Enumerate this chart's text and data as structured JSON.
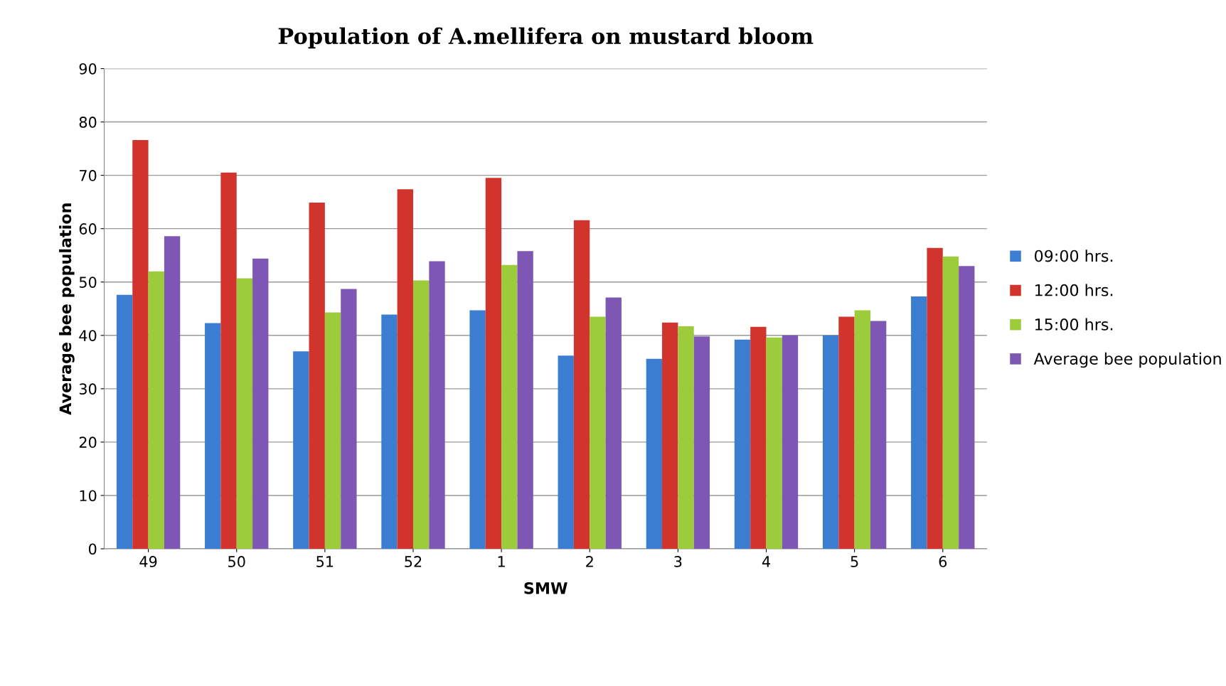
{
  "chart_data": {
    "type": "bar",
    "title": "Population of A.mellifera on mustard bloom",
    "xlabel": "SMW",
    "ylabel": "Average bee population",
    "categories": [
      "49",
      "50",
      "51",
      "52",
      "1",
      "2",
      "3",
      "4",
      "5",
      "6"
    ],
    "series": [
      {
        "name": "09:00 hrs.",
        "color": "#3b7dd0",
        "values": [
          47.6,
          42.3,
          37.0,
          43.9,
          44.7,
          36.2,
          35.6,
          39.2,
          40.0,
          47.3
        ]
      },
      {
        "name": "12:00 hrs.",
        "color": "#d0342c",
        "values": [
          76.6,
          70.5,
          64.9,
          67.4,
          69.5,
          61.6,
          42.4,
          41.6,
          43.5,
          56.4
        ]
      },
      {
        "name": "15:00 hrs.",
        "color": "#9ccc3c",
        "values": [
          52.0,
          50.7,
          44.3,
          50.3,
          53.2,
          43.5,
          41.7,
          39.6,
          44.7,
          54.8
        ]
      },
      {
        "name": "Average bee population",
        "color": "#7e57b4",
        "values": [
          58.6,
          54.4,
          48.7,
          53.9,
          55.8,
          47.1,
          39.8,
          40.0,
          42.7,
          53.0
        ]
      }
    ],
    "ylim": [
      0,
      90
    ],
    "yticks": [
      0,
      10,
      20,
      30,
      40,
      50,
      60,
      70,
      80,
      90
    ],
    "grid": "y",
    "legend": "right"
  }
}
